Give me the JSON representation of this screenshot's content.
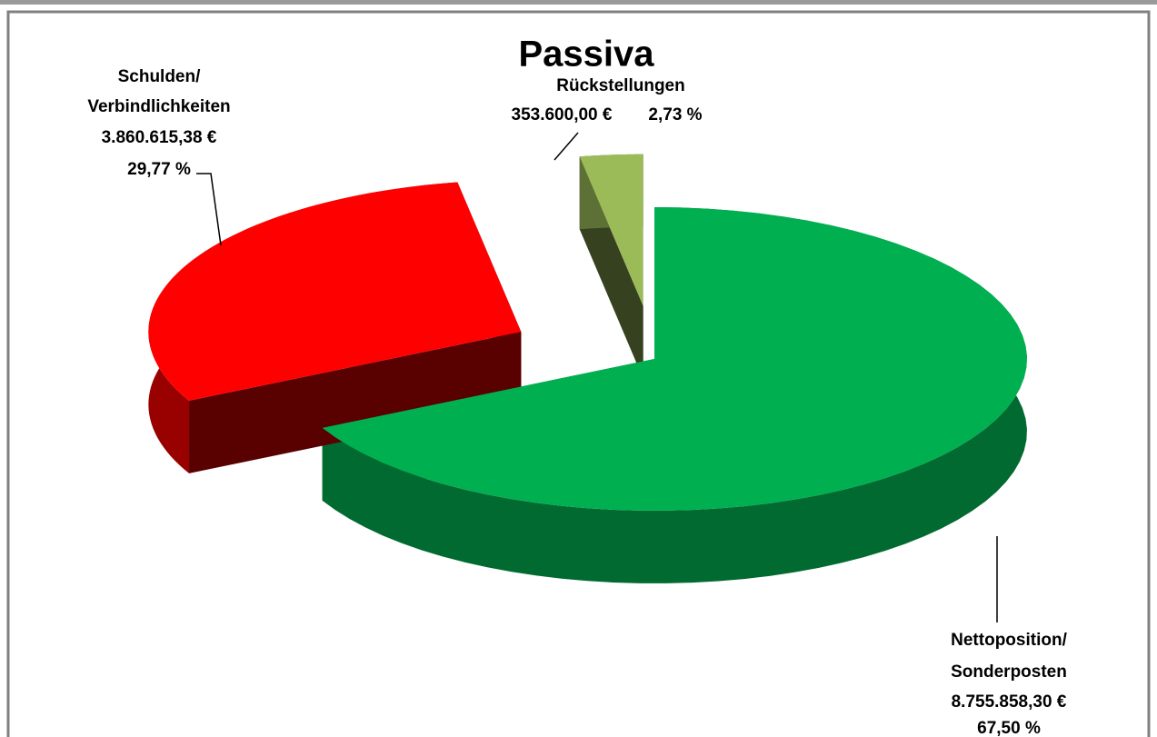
{
  "chart_data": {
    "type": "pie3d",
    "title": "Passiva",
    "categories": [
      [
        "Nettoposition/",
        "Sonderposten"
      ],
      [
        "Schulden/",
        "Verbindlichkeiten"
      ],
      [
        "Rückstellungen"
      ]
    ],
    "values": [
      67.5,
      29.77,
      2.73
    ],
    "value_labels": [
      "67,50 %",
      "29,77 %",
      "2,73 %"
    ],
    "amount_labels": [
      "8.755.858,30 €",
      "3.860.615,38 €",
      "353.600,00 €"
    ],
    "colors": [
      "#00b050",
      "#ff0000",
      "#9bbb59"
    ]
  }
}
